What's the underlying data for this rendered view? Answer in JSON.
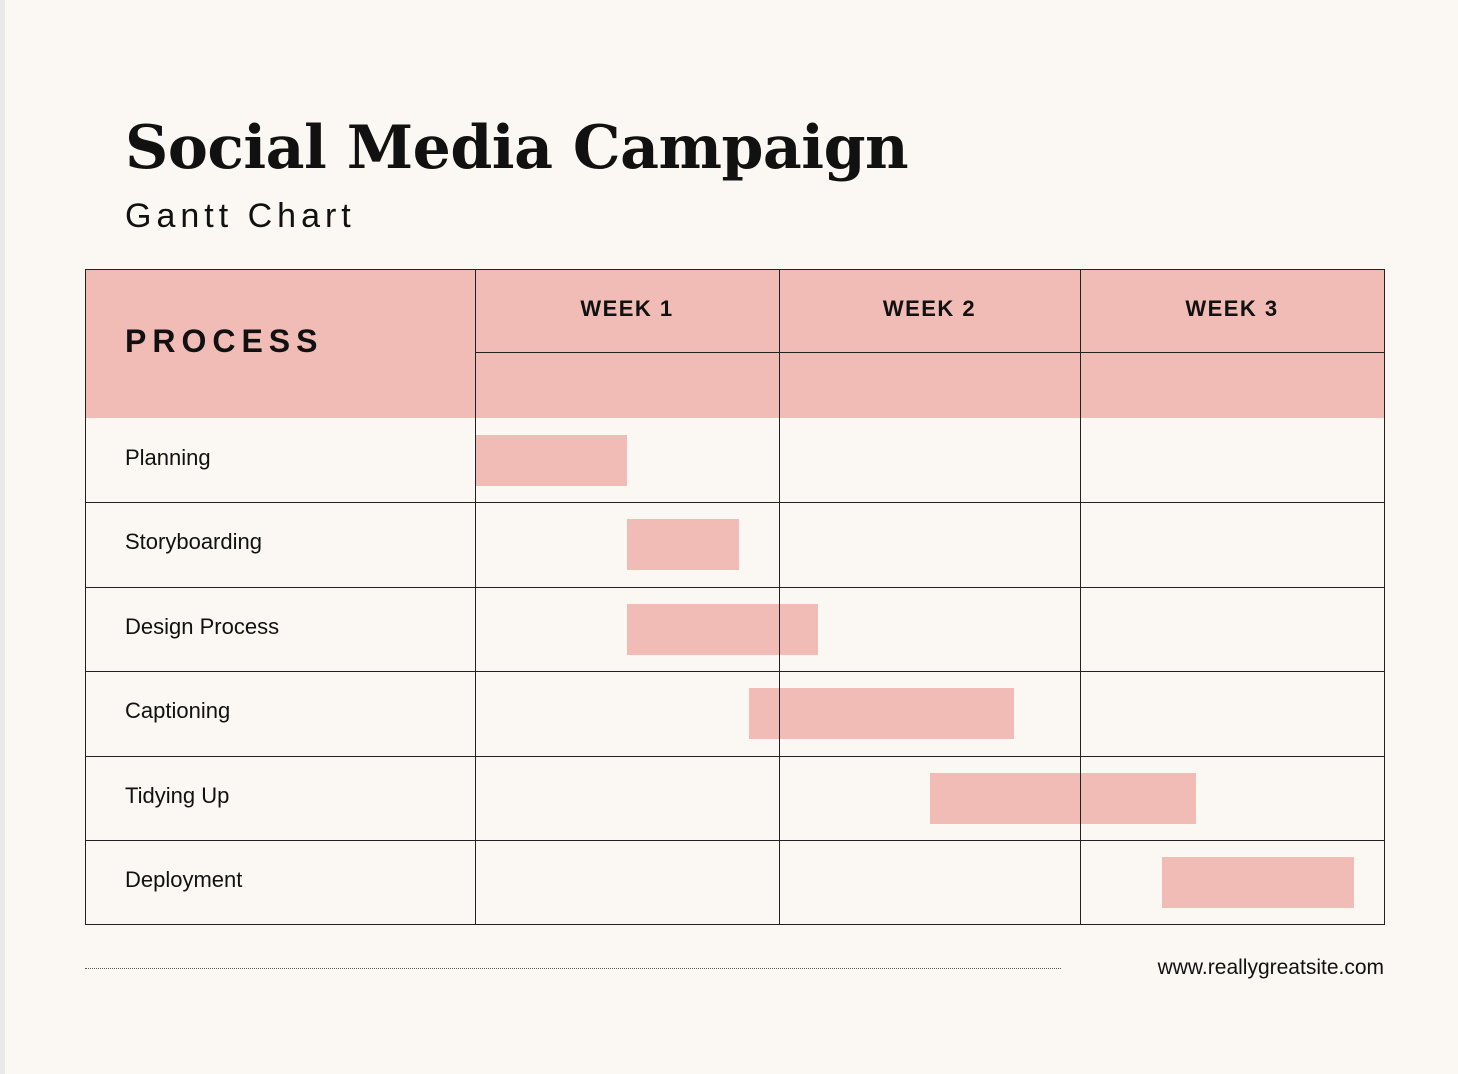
{
  "title": "Social Media Campaign",
  "subtitle": "Gantt Chart",
  "footer": {
    "url": "www.reallygreatsite.com"
  },
  "colors": {
    "background": "#fbf7f2",
    "accent": "#f2bcb6",
    "grid": "#222222",
    "text": "#111111"
  },
  "chart_data": {
    "type": "gantt",
    "title": "Social Media Campaign",
    "subtitle": "Gantt Chart",
    "process_header": "PROCESS",
    "weeks": [
      "WEEK 1",
      "WEEK 2",
      "WEEK 3"
    ],
    "time_unit": "weeks",
    "xlim": [
      0,
      3
    ],
    "tasks": [
      {
        "name": "Planning",
        "start": 0.0,
        "end": 0.5
      },
      {
        "name": "Storyboarding",
        "start": 0.5,
        "end": 0.87
      },
      {
        "name": "Design Process",
        "start": 0.5,
        "end": 1.13
      },
      {
        "name": "Captioning",
        "start": 0.9,
        "end": 1.78
      },
      {
        "name": "Tidying Up",
        "start": 1.5,
        "end": 2.38
      },
      {
        "name": "Deployment",
        "start": 2.27,
        "end": 2.9
      }
    ]
  }
}
